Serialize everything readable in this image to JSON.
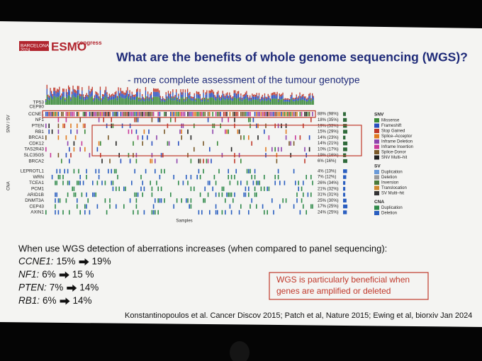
{
  "header": {
    "congress_city": "BARCELONA",
    "congress_year": "2024",
    "brand": "ESMO",
    "brand_suffix": "congress"
  },
  "title": "What are the benefits of whole genome sequencing (WGS)?",
  "subtitle": "- more complete assessment of the tumour genotype",
  "oncoprint": {
    "snv_axis_label": "SNV / SV",
    "cna_axis_label": "CNA",
    "x_axis_label": "Samples",
    "top_labels": [
      "TP53",
      "CEP80"
    ],
    "snv_rows": [
      {
        "gene": "CCNE1",
        "pct": "88% (98%)"
      },
      {
        "gene": "NF1",
        "pct": "18% (35%)"
      },
      {
        "gene": "PTEN",
        "pct": "19% (33%)"
      },
      {
        "gene": "RB1",
        "pct": "15% (29%)"
      },
      {
        "gene": "BRCA1",
        "pct": "14% (23%)"
      },
      {
        "gene": "CDK12",
        "pct": "14% (21%)"
      },
      {
        "gene": "TAS2R43",
        "pct": "10% (17%)"
      },
      {
        "gene": "SLC35G5",
        "pct": "19% (16%)"
      },
      {
        "gene": "BRCA2",
        "pct": "6% (16%)"
      }
    ],
    "cna_rows": [
      {
        "gene": "LEPROTL1",
        "pct": "4% (13%)"
      },
      {
        "gene": "WRN",
        "pct": "7% (12%)"
      },
      {
        "gene": "TCEA1",
        "pct": "26% (34%)"
      },
      {
        "gene": "PCM1",
        "pct": "21% (32%)"
      },
      {
        "gene": "ARID1B",
        "pct": "31% (31%)"
      },
      {
        "gene": "DNMT3A",
        "pct": "25% (30%)"
      },
      {
        "gene": "CEP43",
        "pct": "17% (25%)"
      },
      {
        "gene": "AXIN1",
        "pct": "24% (25%)"
      }
    ],
    "legend": [
      {
        "heading": "SNV",
        "items": [
          {
            "label": "Missense",
            "color": "#3a8a3a"
          },
          {
            "label": "Frameshift",
            "color": "#2a4fc0"
          },
          {
            "label": "Stop Gained",
            "color": "#c0392b"
          },
          {
            "label": "Splice–Acceptor",
            "color": "#e07a20"
          },
          {
            "label": "Inframe Deletion",
            "color": "#8e44ad"
          },
          {
            "label": "Inframe Insertion",
            "color": "#c83a9a"
          },
          {
            "label": "Splice-Donor",
            "color": "#7a5a2a"
          },
          {
            "label": "SNV Multi–hit",
            "color": "#222222"
          }
        ]
      },
      {
        "heading": "SV",
        "items": [
          {
            "label": "Duplication",
            "color": "#6a9ad8"
          },
          {
            "label": "Deletion",
            "color": "#9a9a9a"
          },
          {
            "label": "Inversion",
            "color": "#4a7a3a"
          },
          {
            "label": "Translocation",
            "color": "#d08a30"
          },
          {
            "label": "SV Multi–hit",
            "color": "#333333"
          }
        ]
      },
      {
        "heading": "CNA",
        "items": [
          {
            "label": "Duplication",
            "color": "#2f8a4a"
          },
          {
            "label": "Deletion",
            "color": "#2a5ec0"
          }
        ]
      }
    ]
  },
  "intro": "When use WGS detection of aberrations increases (when compared to panel sequencing):",
  "increases": [
    {
      "gene": "CCNE1:",
      "from": "15%",
      "to": "19%"
    },
    {
      "gene": "NF1:",
      "from": "6%",
      "to": "15 %"
    },
    {
      "gene": "PTEN:",
      "from": "7%",
      "to": "14%"
    },
    {
      "gene": "RB1:",
      "from": "6%",
      "to": "14%"
    }
  ],
  "callout": [
    "WGS is particularly beneficial when",
    "genes are amplified or deleted"
  ],
  "citation": "Konstantinopoulos et al. Cancer Discov 2015; Patch et al, Nature 2015; Ewing et al, biorxiv Jan 2024"
}
